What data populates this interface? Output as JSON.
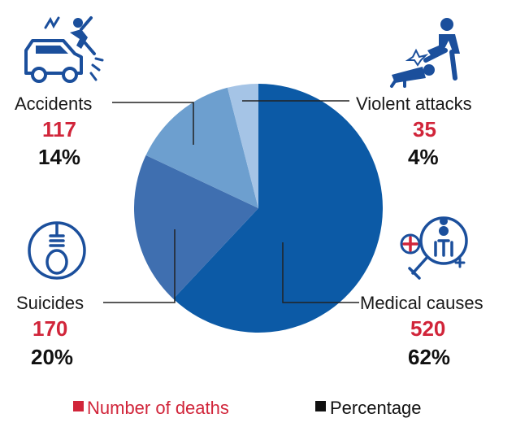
{
  "colors": {
    "count": "#d1253a",
    "percentage": "#111111",
    "icon": "#1b4f9c",
    "leader": "#222222"
  },
  "chart_data": {
    "type": "pie",
    "start_angle_deg": 0,
    "direction": "clockwise",
    "slices": [
      {
        "label": "Medical causes",
        "count": "520",
        "percent_label": "62%",
        "value": 62,
        "color": "#0c5aa6",
        "icon": "medical-magnifier-icon"
      },
      {
        "label": "Suicides",
        "count": "170",
        "percent_label": "20%",
        "value": 20,
        "color": "#3f6fb0",
        "icon": "noose-icon"
      },
      {
        "label": "Accidents",
        "count": "117",
        "percent_label": "14%",
        "value": 14,
        "color": "#6d9fcf",
        "icon": "car-accident-icon"
      },
      {
        "label": "Violent attacks",
        "count": "35",
        "percent_label": "4%",
        "value": 4,
        "color": "#a5c4e6",
        "icon": "violent-attack-icon"
      }
    ],
    "legend": {
      "placement": "bottom",
      "items": [
        {
          "label": "Number of deaths",
          "color": "#d1253a"
        },
        {
          "label": "Percentage",
          "color": "#111111"
        }
      ]
    }
  }
}
